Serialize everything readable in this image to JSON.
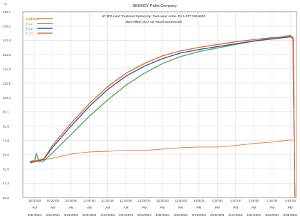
{
  "chart_data": {
    "type": "line",
    "title": "BEKMCY Pallet Company",
    "subtitle_1": "HC 800 Heat Treatment System by: Peel-Heat, Aston, PA 1-877-236-5600",
    "subtitle_2": "380 Pallets (40 x 42) Wood Stackwoods",
    "y_unit": "°F",
    "ylim": [
      31.0,
      163.4
    ],
    "y_ticks": [
      "163.4",
      "153.2",
      "143.0",
      "133.6",
      "122.6",
      "112.5",
      "102.3",
      "92.1",
      "81.9",
      "71.8",
      "61.6",
      "51.5",
      "41.3",
      "31.0"
    ],
    "x_ticks": [
      {
        "time": "10:00:00",
        "ampm": "AM",
        "date": "3/31/2004"
      },
      {
        "time": "10:20:00",
        "ampm": "AM",
        "date": "3/31/2004"
      },
      {
        "time": "10:40:00",
        "ampm": "AM",
        "date": "3/31/2004"
      },
      {
        "time": "11:00:00",
        "ampm": "AM",
        "date": "3/31/2004"
      },
      {
        "time": "11:20:00",
        "ampm": "AM",
        "date": "3/31/2004"
      },
      {
        "time": "11:40:00",
        "ampm": "AM",
        "date": "3/31/2004"
      },
      {
        "time": "12:00:00",
        "ampm": "PM",
        "date": "3/31/2004"
      },
      {
        "time": "12:20:00",
        "ampm": "PM",
        "date": "3/31/2004"
      },
      {
        "time": "12:40:00",
        "ampm": "PM",
        "date": "3/31/2004"
      },
      {
        "time": "1:00:00",
        "ampm": "PM",
        "date": "3/31/2004"
      },
      {
        "time": "1:20:00",
        "ampm": "PM",
        "date": "3/31/2004"
      },
      {
        "time": "1:40:00",
        "ampm": "PM",
        "date": "3/31/2004"
      },
      {
        "time": "2:00:00",
        "ampm": "PM",
        "date": "3/31/2004"
      },
      {
        "time": "2:20:00",
        "ampm": "PM",
        "date": "3/31/2004"
      },
      {
        "time": "2:40:00",
        "ampm": "PM",
        "date": "3/31/2004"
      }
    ],
    "grid": true,
    "legend_position": "top-left",
    "series": [
      {
        "name": "Ambient",
        "color": "#e8803a",
        "x": [
          "9:55:00",
          "10:00:00",
          "10:10:00",
          "10:20:00",
          "10:40:00",
          "11:00:00",
          "11:20:00",
          "11:40:00",
          "12:00:00",
          "12:20:00",
          "12:40:00",
          "1:00:00",
          "1:20:00",
          "1:40:00",
          "2:00:00",
          "2:20:00",
          "2:40:00",
          "2:43:00"
        ],
        "y": [
          57.0,
          57.5,
          58.0,
          59.0,
          62.0,
          63.5,
          64.0,
          64.5,
          64.5,
          65.5,
          66.5,
          67.0,
          67.0,
          68.0,
          69.5,
          70.5,
          72.0,
          72.0
        ]
      },
      {
        "name": "T C1",
        "color": "#5aa55a",
        "x": [
          "9:55:00",
          "10:00:00",
          "10:02:00",
          "10:05:00",
          "10:10:00",
          "10:20:00",
          "10:40:00",
          "11:00:00",
          "11:20:00",
          "11:40:00",
          "12:00:00",
          "12:20:00",
          "12:40:00",
          "1:00:00",
          "1:20:00",
          "1:40:00",
          "2:00:00",
          "2:20:00",
          "2:40:00",
          "2:43:00",
          "2:45:00"
        ],
        "y": [
          55.5,
          56.5,
          62.5,
          56.5,
          57.0,
          63.0,
          76.0,
          89.0,
          100.5,
          111.0,
          119.5,
          126.5,
          131.5,
          135.0,
          137.5,
          140.0,
          142.5,
          144.5,
          146.5,
          145.0,
          31.0
        ]
      },
      {
        "name": "T C2",
        "color": "#2f56b8",
        "x": [
          "9:55:00",
          "10:00:00",
          "10:10:00",
          "10:20:00",
          "10:40:00",
          "11:00:00",
          "11:20:00",
          "11:40:00",
          "12:00:00",
          "12:20:00",
          "12:40:00",
          "1:00:00",
          "1:20:00",
          "1:40:00",
          "2:00:00",
          "2:20:00",
          "2:40:00",
          "2:43:00",
          "2:45:00"
        ],
        "y": [
          56.0,
          56.5,
          58.0,
          67.0,
          82.0,
          96.0,
          108.0,
          117.5,
          124.5,
          130.0,
          134.0,
          136.5,
          138.5,
          140.5,
          142.5,
          144.0,
          145.5,
          144.5,
          31.0
        ]
      },
      {
        "name": "T C3",
        "color": "#e86a28",
        "x": [
          "9:55:00",
          "10:00:00",
          "10:10:00",
          "10:20:00",
          "10:40:00",
          "11:00:00",
          "11:20:00",
          "11:40:00",
          "12:00:00",
          "12:20:00",
          "12:40:00",
          "1:00:00",
          "1:20:00",
          "1:40:00",
          "2:00:00",
          "2:20:00",
          "2:40:00",
          "2:43:00",
          "2:45:00"
        ],
        "y": [
          56.5,
          57.0,
          58.5,
          68.5,
          84.0,
          98.0,
          110.0,
          119.5,
          126.5,
          132.0,
          135.5,
          138.0,
          140.0,
          142.0,
          143.5,
          145.0,
          146.0,
          145.0,
          31.0
        ]
      }
    ]
  }
}
